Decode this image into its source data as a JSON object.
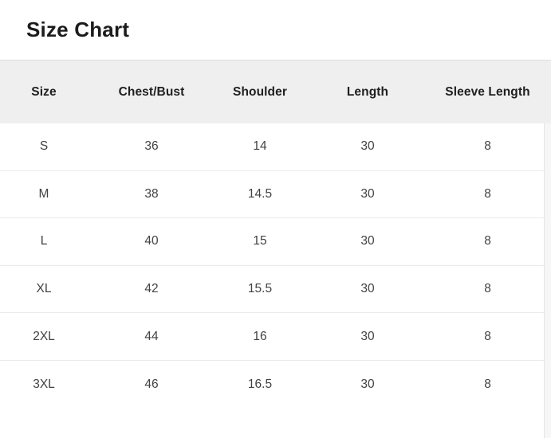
{
  "title": "Size Chart",
  "table": {
    "columns": [
      "Size",
      "Chest/Bust",
      "Shoulder",
      "Length",
      "Sleeve Length"
    ],
    "rows": [
      [
        "S",
        "36",
        "14",
        "30",
        "8"
      ],
      [
        "M",
        "38",
        "14.5",
        "30",
        "8"
      ],
      [
        "L",
        "40",
        "15",
        "30",
        "8"
      ],
      [
        "XL",
        "42",
        "15.5",
        "30",
        "8"
      ],
      [
        "2XL",
        "44",
        "16",
        "30",
        "8"
      ],
      [
        "3XL",
        "46",
        "16.5",
        "30",
        "8"
      ]
    ]
  },
  "colors": {
    "page_bg": "#ffffff",
    "header_bg": "#efefef",
    "header_top_border": "#dedede",
    "row_divider": "#ebebeb",
    "table_right_border": "#e5e5e5",
    "scroll_track": "#f6f6f6",
    "text_heading": "#1c1c1c",
    "text_header_cell": "#202020",
    "text_body_cell": "#424242"
  }
}
